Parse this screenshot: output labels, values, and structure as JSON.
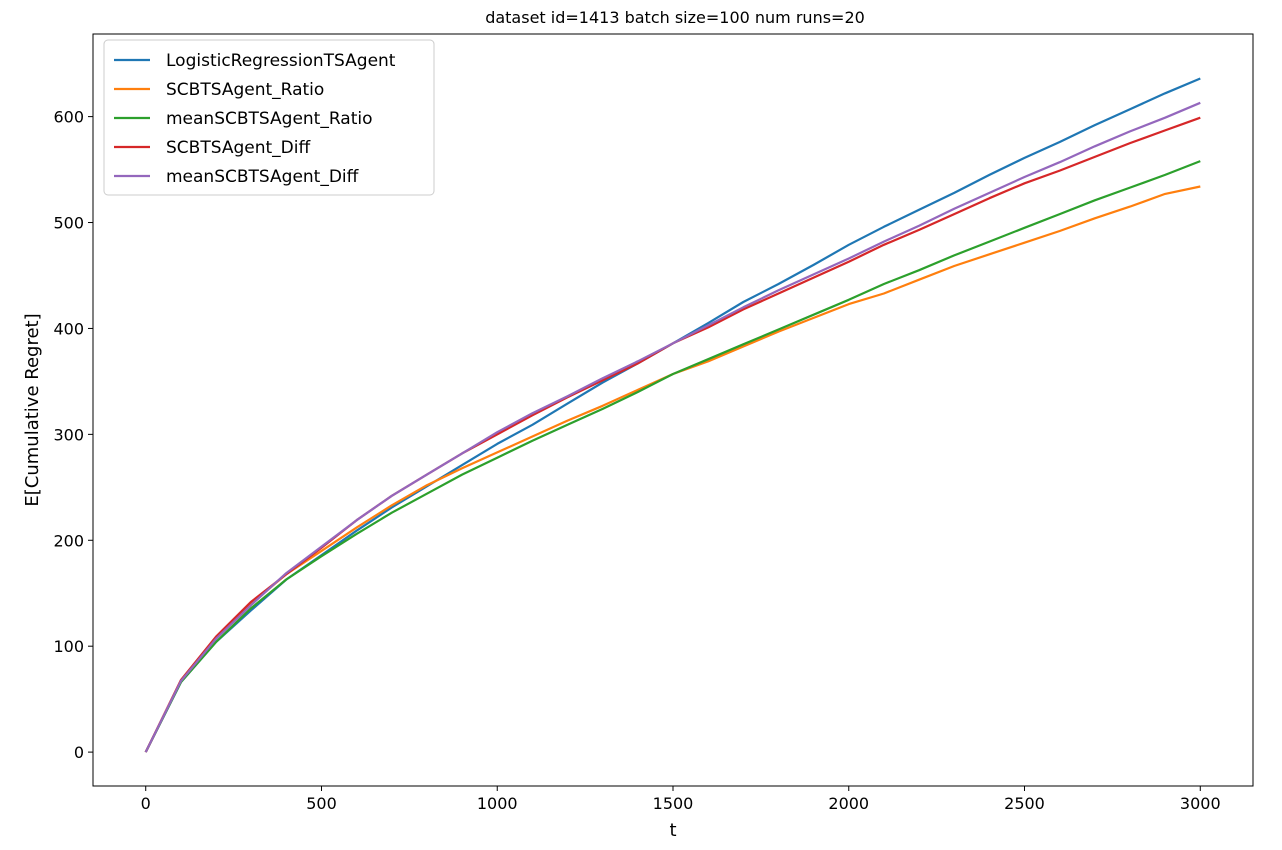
{
  "chart_data": {
    "type": "line",
    "title": "dataset id=1413 batch size=100 num runs=20",
    "xlabel": "t",
    "ylabel": "E[Cumulative Regret]",
    "xlim": [
      -150,
      3150
    ],
    "ylim": [
      -32,
      678
    ],
    "xticks": [
      0,
      500,
      1000,
      1500,
      2000,
      2500,
      3000
    ],
    "yticks": [
      0,
      100,
      200,
      300,
      400,
      500,
      600
    ],
    "grid": false,
    "legend": "upper-left",
    "x": [
      0,
      100,
      200,
      300,
      400,
      500,
      600,
      700,
      800,
      900,
      1000,
      1100,
      1200,
      1300,
      1400,
      1500,
      1600,
      1700,
      1800,
      1900,
      2000,
      2100,
      2200,
      2300,
      2400,
      2500,
      2600,
      2700,
      2800,
      2900,
      3000
    ],
    "series": [
      {
        "name": "LogisticRegressionTSAgent",
        "color": "#1f77b4",
        "values": [
          0,
          66,
          104,
          134,
          163,
          186,
          209,
          231,
          251,
          271,
          291,
          309,
          329,
          349,
          367,
          386,
          405,
          425,
          442,
          460,
          479,
          496,
          512,
          528,
          545,
          561,
          576,
          592,
          607,
          622,
          636
        ]
      },
      {
        "name": "SCBTSAgent_Ratio",
        "color": "#ff7f0e",
        "values": [
          0,
          67,
          108,
          140,
          168,
          190,
          212,
          233,
          252,
          268,
          283,
          298,
          313,
          327,
          342,
          357,
          369,
          383,
          397,
          410,
          423,
          433,
          446,
          459,
          470,
          481,
          492,
          504,
          515,
          527,
          534
        ]
      },
      {
        "name": "meanSCBTSAgent_Ratio",
        "color": "#2ca02c",
        "values": [
          0,
          66,
          104,
          136,
          163,
          185,
          206,
          226,
          244,
          262,
          278,
          294,
          309,
          324,
          340,
          357,
          371,
          385,
          399,
          413,
          427,
          442,
          455,
          469,
          482,
          495,
          508,
          521,
          533,
          545,
          558
        ]
      },
      {
        "name": "SCBTSAgent_Diff",
        "color": "#d62728",
        "values": [
          0,
          68,
          109,
          142,
          168,
          193,
          219,
          242,
          262,
          282,
          300,
          318,
          335,
          351,
          367,
          386,
          401,
          418,
          433,
          448,
          463,
          479,
          493,
          508,
          523,
          537,
          549,
          562,
          575,
          587,
          599
        ]
      },
      {
        "name": "meanSCBTSAgent_Diff",
        "color": "#9467bd",
        "values": [
          0,
          67,
          107,
          139,
          169,
          194,
          219,
          242,
          262,
          282,
          302,
          320,
          336,
          353,
          369,
          386,
          403,
          420,
          436,
          451,
          466,
          482,
          497,
          513,
          528,
          543,
          557,
          572,
          586,
          599,
          613
        ]
      }
    ]
  }
}
